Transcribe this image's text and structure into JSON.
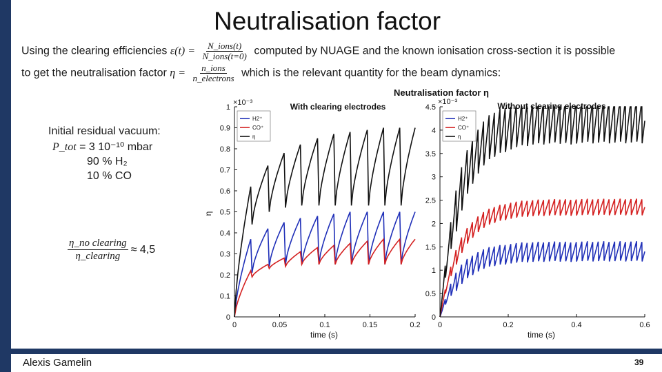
{
  "slide": {
    "title": "Neutralisation factor",
    "line1_pre": "Using the clearing efficiencies",
    "line1_eps": "ε(t) =",
    "line1_num": "N_ions(t)",
    "line1_den": "N_ions(t=0)",
    "line1_post": "computed by NUAGE and the known ionisation cross-section it is possible",
    "line2_pre": "to get the neutralisation factor",
    "line2_eta": "η =",
    "line2_num": "n_ions",
    "line2_den": "n_electrons",
    "line2_post": "which is the relevant quantity for the beam dynamics:",
    "conditions": {
      "heading": "Initial residual vacuum:",
      "pressure_lhs": "P_tot",
      "pressure_value": "= 3 10⁻¹⁰ mbar",
      "h2": "90 % H₂",
      "co": "10 % CO"
    },
    "ratio": {
      "num": "η_no clearing",
      "den": "η_clearing",
      "value": "≈ 4,5"
    },
    "author": "Alexis Gamelin",
    "page": "39"
  },
  "chart_data": [
    {
      "type": "line",
      "title": "Neutralisation factor η",
      "subtitle": "With clearing electrodes",
      "xlabel": "time (s)",
      "ylabel": "η",
      "y_multiplier": "×10⁻³",
      "xlim": [
        0,
        0.2
      ],
      "ylim": [
        0,
        1
      ],
      "x_ticks": [
        "0",
        "0.05",
        "0.1",
        "0.15",
        "0.2"
      ],
      "y_ticks": [
        "0",
        "0.1",
        "0.2",
        "0.3",
        "0.4",
        "0.5",
        "0.6",
        "0.7",
        "0.8",
        "0.9",
        "1"
      ],
      "legend_position": "top-left",
      "series": [
        {
          "name": "H2⁺",
          "color": "#1f2fb8",
          "peak_times": [
            0.018,
            0.037,
            0.055,
            0.073,
            0.092,
            0.11,
            0.128,
            0.147,
            0.165,
            0.183,
            0.2
          ],
          "peak_values": [
            0.37,
            0.42,
            0.45,
            0.47,
            0.48,
            0.49,
            0.5,
            0.5,
            0.5,
            0.5,
            0.5
          ],
          "trough_values": [
            0.21,
            0.24,
            0.25,
            0.25,
            0.25,
            0.25,
            0.25,
            0.25,
            0.25,
            0.25,
            0.25
          ]
        },
        {
          "name": "CO⁺",
          "color": "#d42020",
          "peak_times": [
            0.018,
            0.037,
            0.055,
            0.073,
            0.092,
            0.11,
            0.128,
            0.147,
            0.165,
            0.183,
            0.2
          ],
          "peak_values": [
            0.22,
            0.25,
            0.28,
            0.31,
            0.33,
            0.34,
            0.35,
            0.36,
            0.37,
            0.37,
            0.37
          ],
          "trough_values": [
            0.19,
            0.23,
            0.24,
            0.25,
            0.25,
            0.25,
            0.25,
            0.25,
            0.25,
            0.25,
            0.25
          ]
        },
        {
          "name": "η",
          "color": "#111111",
          "peak_times": [
            0.018,
            0.037,
            0.055,
            0.073,
            0.092,
            0.11,
            0.128,
            0.147,
            0.165,
            0.183,
            0.2
          ],
          "peak_values": [
            0.62,
            0.72,
            0.78,
            0.82,
            0.85,
            0.87,
            0.88,
            0.89,
            0.9,
            0.9,
            0.9
          ],
          "trough_values": [
            0.44,
            0.5,
            0.52,
            0.53,
            0.53,
            0.53,
            0.53,
            0.53,
            0.53,
            0.53,
            0.53
          ]
        }
      ]
    },
    {
      "type": "line",
      "subtitle": "Without clearing electrodes",
      "xlabel": "time (s)",
      "y_multiplier": "×10⁻³",
      "xlim": [
        0,
        0.6
      ],
      "ylim": [
        0,
        4.5
      ],
      "x_ticks": [
        "0",
        "0.2",
        "0.4",
        "0.6"
      ],
      "y_ticks": [
        "0",
        "0.5",
        "1",
        "1.5",
        "2",
        "2.5",
        "3",
        "3.5",
        "4",
        "4.5"
      ],
      "legend_position": "top-left",
      "series": [
        {
          "name": "H2⁺",
          "color": "#1f2fb8",
          "saturation": 1.4,
          "oscillation": 0.22
        },
        {
          "name": "CO⁺",
          "color": "#d42020",
          "saturation": 2.35,
          "oscillation": 0.18
        },
        {
          "name": "η",
          "color": "#111111",
          "saturation": 4.2,
          "oscillation": 0.5
        }
      ]
    }
  ]
}
